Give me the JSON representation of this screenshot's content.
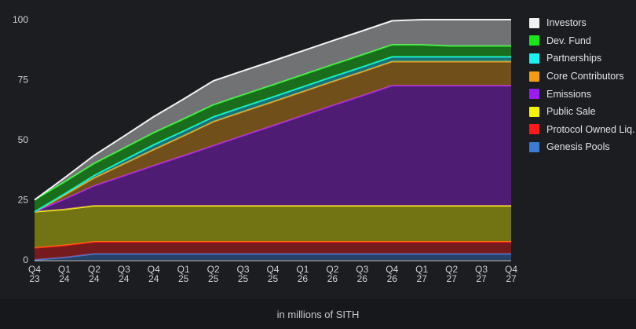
{
  "chart_data": {
    "type": "area",
    "stacked": true,
    "title": "",
    "xlabel": "in millions of SITH",
    "ylabel": "",
    "ylim": [
      0,
      100
    ],
    "yticks": [
      0,
      25,
      50,
      75,
      100
    ],
    "grid": false,
    "legend_position": "right",
    "categories": [
      [
        "Q4",
        "23"
      ],
      [
        "Q1",
        "24"
      ],
      [
        "Q2",
        "24"
      ],
      [
        "Q3",
        "24"
      ],
      [
        "Q4",
        "24"
      ],
      [
        "Q1",
        "25"
      ],
      [
        "Q2",
        "25"
      ],
      [
        "Q3",
        "25"
      ],
      [
        "Q4",
        "25"
      ],
      [
        "Q1",
        "26"
      ],
      [
        "Q2",
        "26"
      ],
      [
        "Q3",
        "26"
      ],
      [
        "Q4",
        "26"
      ],
      [
        "Q1",
        "27"
      ],
      [
        "Q2",
        "27"
      ],
      [
        "Q3",
        "27"
      ],
      [
        "Q4",
        "27"
      ]
    ],
    "series": [
      {
        "name": "Genesis Pools",
        "color": "#3a7bd5",
        "values": [
          0,
          1,
          2.5,
          2.5,
          2.5,
          2.5,
          2.5,
          2.5,
          2.5,
          2.5,
          2.5,
          2.5,
          2.5,
          2.5,
          2.5,
          2.5,
          2.5
        ]
      },
      {
        "name": "Protocol Owned Liq.",
        "color": "#ff1a1a",
        "values": [
          5,
          5,
          5,
          5,
          5,
          5,
          5,
          5,
          5,
          5,
          5,
          5,
          5,
          5,
          5,
          5,
          5
        ]
      },
      {
        "name": "Public Sale",
        "color": "#f5f500",
        "values": [
          15,
          15,
          15,
          15,
          15,
          15,
          15,
          15,
          15,
          15,
          15,
          15,
          15,
          15,
          15,
          15,
          15
        ]
      },
      {
        "name": "Emissions",
        "color": "#9b1cf0",
        "values": [
          0,
          4.2,
          8.3,
          12.5,
          16.7,
          20.8,
          25,
          29.2,
          33.3,
          37.5,
          41.7,
          45.8,
          50,
          50,
          50,
          50,
          50
        ]
      },
      {
        "name": "Core Contributors",
        "color": "#f39c12",
        "values": [
          0,
          1.7,
          3.3,
          5,
          6.7,
          8.3,
          10,
          10,
          10,
          10,
          10,
          10,
          10,
          10,
          10,
          10,
          10
        ]
      },
      {
        "name": "Partnerships",
        "color": "#19f0f0",
        "values": [
          0,
          0.5,
          1,
          1.5,
          2,
          2,
          2,
          2,
          2,
          2,
          2,
          2,
          2,
          2,
          2,
          2,
          2
        ]
      },
      {
        "name": "Dev. Fund",
        "color": "#19e619",
        "values": [
          5,
          5,
          5,
          5,
          5,
          5,
          5,
          5,
          5,
          5,
          5,
          5,
          5,
          5,
          4.5,
          4.5,
          4.5
        ]
      },
      {
        "name": "Investors",
        "color": "#f2f2f2",
        "values": [
          0,
          1.7,
          3.4,
          5,
          6.7,
          8.3,
          10,
          10,
          10,
          10,
          10,
          10,
          10,
          10.5,
          11,
          11,
          11
        ]
      }
    ]
  },
  "legend": [
    "Investors",
    "Dev. Fund",
    "Partnerships",
    "Core Contributors",
    "Emissions",
    "Public Sale",
    "Protocol Owned Liq.",
    "Genesis Pools"
  ],
  "footer": "in millions of SITH"
}
